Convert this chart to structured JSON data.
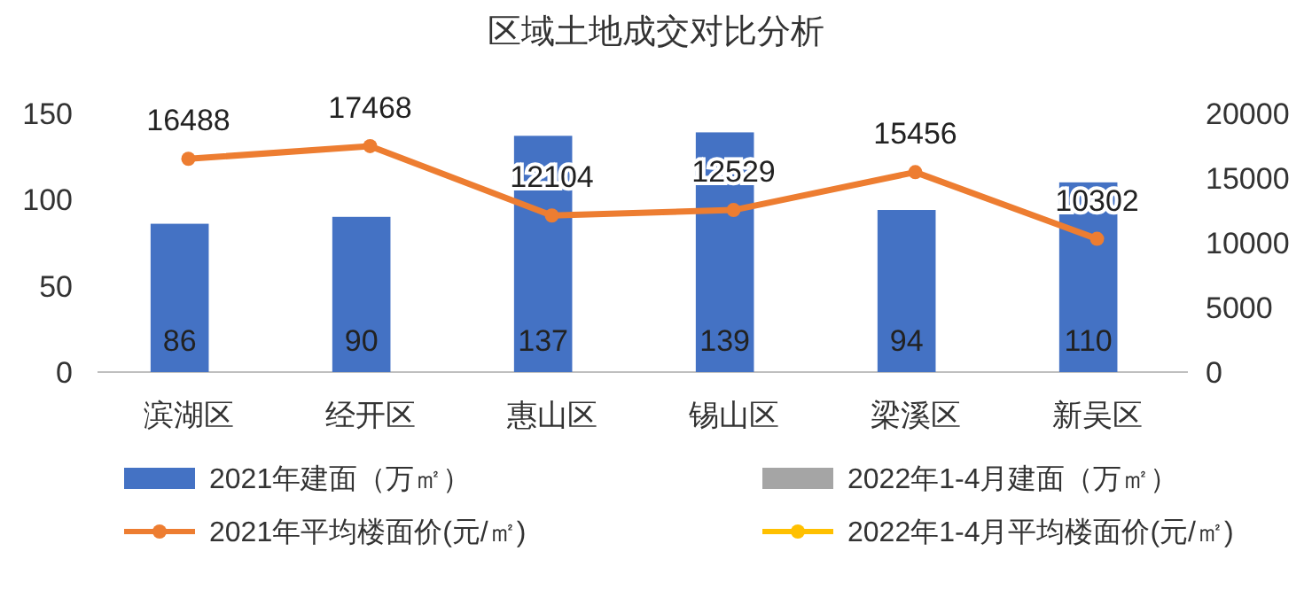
{
  "chart_data": {
    "type": "bar",
    "title": "区域土地成交对比分析",
    "categories": [
      "滨湖区",
      "经开区",
      "惠山区",
      "锡山区",
      "梁溪区",
      "新吴区"
    ],
    "series": [
      {
        "name": "2021年建面（万㎡）",
        "color": "#4472c4",
        "values": [
          86,
          90,
          137,
          139,
          94,
          110
        ]
      },
      {
        "name": "2022年1-4月建面（万㎡）",
        "color": "#a5a5a5",
        "values": [
          null,
          null,
          null,
          null,
          null,
          null
        ]
      },
      {
        "name": "2021年平均楼面价(元/㎡)",
        "type": "line",
        "axis": "y2",
        "color": "#ed7d31",
        "values": [
          16488,
          17468,
          12104,
          12529,
          15456,
          10302
        ]
      },
      {
        "name": "2022年1-4月平均楼面价(元/㎡)",
        "type": "line",
        "axis": "y2",
        "color": "#ffc000",
        "values": [
          null,
          null,
          null,
          null,
          null,
          null
        ]
      }
    ],
    "ylim": [
      0,
      150
    ],
    "yticks": [
      0,
      50,
      100,
      150
    ],
    "y2lim": [
      0,
      20000
    ],
    "y2ticks": [
      0,
      5000,
      10000,
      15000,
      20000
    ],
    "marker": "circle",
    "data_labels": true,
    "legend": "bottom"
  }
}
